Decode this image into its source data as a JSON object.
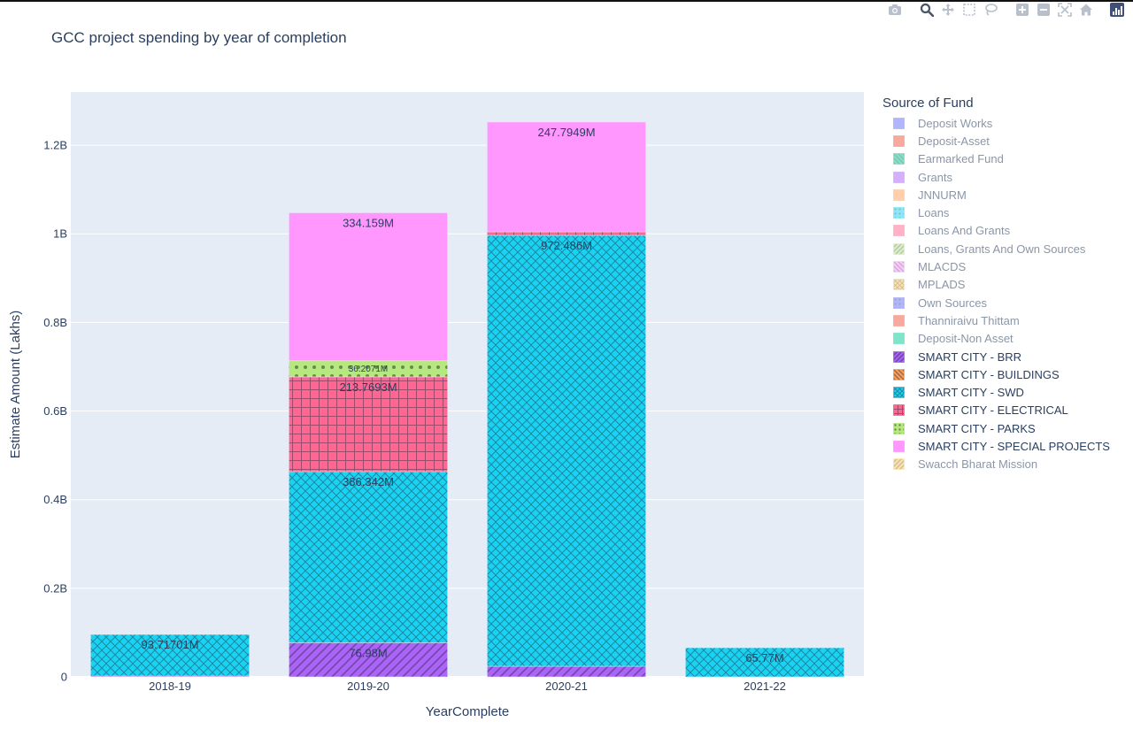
{
  "modebar": {
    "buttons": [
      {
        "name": "camera-icon",
        "title": "Download plot as a png"
      },
      {
        "name": "zoom-icon",
        "title": "Zoom"
      },
      {
        "name": "pan-icon",
        "title": "Pan"
      },
      {
        "name": "box-select-icon",
        "title": "Box Select"
      },
      {
        "name": "lasso-select-icon",
        "title": "Lasso Select"
      },
      {
        "name": "zoom-in-icon",
        "title": "Zoom in"
      },
      {
        "name": "zoom-out-icon",
        "title": "Zoom out"
      },
      {
        "name": "autoscale-icon",
        "title": "Autoscale"
      },
      {
        "name": "reset-axes-icon",
        "title": "Reset axes"
      }
    ]
  },
  "chart_data": {
    "type": "bar",
    "barmode": "stack",
    "title": "GCC project spending by year of completion",
    "xlabel": "YearComplete",
    "ylabel": "Estimate Amount (Lakhs)",
    "categories": [
      "2018-19",
      "2019-20",
      "2020-21",
      "2021-22"
    ],
    "ylim": [
      0,
      1320000000
    ],
    "yticks": [
      {
        "value": 0,
        "label": "0"
      },
      {
        "value": 200000000,
        "label": "0.2B"
      },
      {
        "value": 400000000,
        "label": "0.4B"
      },
      {
        "value": 600000000,
        "label": "0.6B"
      },
      {
        "value": 800000000,
        "label": "0.8B"
      },
      {
        "value": 1000000000,
        "label": "1B"
      },
      {
        "value": 1200000000,
        "label": "1.2B"
      }
    ],
    "grid": true,
    "legend": {
      "title": "Source of Fund",
      "placement": "right"
    },
    "colors": {
      "plot_bg": "#e5ecf6",
      "grid": "#ffffff",
      "text": "#2a3f5f"
    },
    "series": [
      {
        "name": "Deposit Works",
        "color": "#636efa",
        "pattern": "",
        "visible": false,
        "values": [
          null,
          null,
          null,
          null
        ],
        "labels": [
          null,
          null,
          null,
          null
        ]
      },
      {
        "name": "Deposit-Asset",
        "color": "#ef553b",
        "pattern": "",
        "visible": false,
        "values": [
          null,
          null,
          null,
          null
        ],
        "labels": [
          null,
          null,
          null,
          null
        ]
      },
      {
        "name": "Earmarked Fund",
        "color": "#00cc96",
        "pattern": "back",
        "visible": false,
        "values": [
          null,
          null,
          null,
          null
        ],
        "labels": [
          null,
          null,
          null,
          null
        ]
      },
      {
        "name": "Grants",
        "color": "#ab63fa",
        "pattern": "",
        "visible": false,
        "values": [
          null,
          null,
          null,
          null
        ],
        "labels": [
          null,
          null,
          null,
          null
        ]
      },
      {
        "name": "JNNURM",
        "color": "#ffa15a",
        "pattern": "",
        "visible": false,
        "values": [
          null,
          null,
          null,
          null
        ],
        "labels": [
          null,
          null,
          null,
          null
        ]
      },
      {
        "name": "Loans",
        "color": "#19d3f3",
        "pattern": "dots",
        "visible": false,
        "values": [
          null,
          null,
          null,
          null
        ],
        "labels": [
          null,
          null,
          null,
          null
        ]
      },
      {
        "name": "Loans And Grants",
        "color": "#ff6692",
        "pattern": "",
        "visible": false,
        "values": [
          null,
          null,
          null,
          null
        ],
        "labels": [
          null,
          null,
          null,
          null
        ]
      },
      {
        "name": "Loans, Grants And Own Sources",
        "color": "#b6e880",
        "pattern": "fwd",
        "visible": false,
        "values": [
          null,
          null,
          null,
          null
        ],
        "labels": [
          null,
          null,
          null,
          null
        ]
      },
      {
        "name": "MLACDS",
        "color": "#ff97ff",
        "pattern": "back",
        "visible": false,
        "values": [
          null,
          null,
          null,
          null
        ],
        "labels": [
          null,
          null,
          null,
          null
        ]
      },
      {
        "name": "MPLADS",
        "color": "#fecb52",
        "pattern": "cross",
        "visible": false,
        "values": [
          null,
          null,
          null,
          null
        ],
        "labels": [
          null,
          null,
          null,
          null
        ]
      },
      {
        "name": "Own Sources",
        "color": "#636efa",
        "pattern": "dots",
        "visible": false,
        "values": [
          null,
          null,
          null,
          null
        ],
        "labels": [
          null,
          null,
          null,
          null
        ]
      },
      {
        "name": "Thanniraivu Thittam",
        "color": "#ef553b",
        "pattern": "",
        "visible": false,
        "values": [
          null,
          null,
          null,
          null
        ],
        "labels": [
          null,
          null,
          null,
          null
        ]
      },
      {
        "name": "Deposit-Non Asset",
        "color": "#00cc96",
        "pattern": "",
        "visible": false,
        "values": [
          null,
          null,
          null,
          null
        ],
        "labels": [
          null,
          null,
          null,
          null
        ]
      },
      {
        "name": "SMART CITY - BRR",
        "color": "#ab63fa",
        "pattern": "fwd",
        "visible": true,
        "values": [
          2000000,
          76980000,
          24000000,
          0
        ],
        "labels": [
          null,
          "76.98M",
          null,
          null
        ]
      },
      {
        "name": "SMART CITY - BUILDINGS",
        "color": "#ffa15a",
        "pattern": "back",
        "visible": true,
        "values": [
          0,
          0,
          0,
          0
        ],
        "labels": [
          null,
          null,
          null,
          null
        ]
      },
      {
        "name": "SMART CITY - SWD",
        "color": "#19d3f3",
        "pattern": "cross",
        "visible": true,
        "values": [
          93717010,
          386342000,
          972486000,
          65770000
        ],
        "labels": [
          "93.71701M",
          "386.342M",
          "972.486M",
          "65.77M"
        ]
      },
      {
        "name": "SMART CITY - ELECTRICAL",
        "color": "#ff6692",
        "pattern": "grid",
        "visible": true,
        "values": [
          0,
          213769300,
          8000000,
          0
        ],
        "labels": [
          null,
          "213.7693M",
          null,
          null
        ]
      },
      {
        "name": "SMART CITY - PARKS",
        "color": "#b6e880",
        "pattern": "dots",
        "visible": true,
        "values": [
          0,
          36207100,
          0,
          0
        ],
        "labels": [
          null,
          "36.2071M",
          null,
          null
        ]
      },
      {
        "name": "SMART CITY - SPECIAL PROJECTS",
        "color": "#ff97ff",
        "pattern": "",
        "visible": true,
        "values": [
          0,
          334159000,
          247794900,
          0
        ],
        "labels": [
          null,
          "334.159M",
          "247.7949M",
          null
        ]
      },
      {
        "name": "Swacch Bharat Mission",
        "color": "#fecb52",
        "pattern": "fwd",
        "visible": false,
        "values": [
          null,
          null,
          null,
          null
        ],
        "labels": [
          null,
          null,
          null,
          null
        ]
      }
    ]
  }
}
